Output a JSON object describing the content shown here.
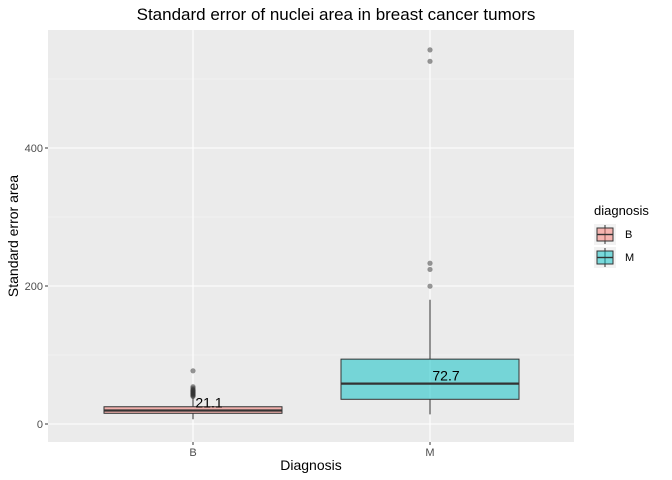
{
  "chart_data": {
    "type": "box",
    "title": "Standard error of nuclei area in breast cancer tumors",
    "xlabel": "Diagnosis",
    "ylabel": "Standard error area",
    "categories": [
      "B",
      "M"
    ],
    "yticks": [
      0,
      200,
      400
    ],
    "ylim": [
      -20,
      560
    ],
    "grid": true,
    "legend": {
      "title": "diagnosis",
      "position": "right",
      "entries": [
        {
          "label": "B",
          "color": "#F8766D"
        },
        {
          "label": "M",
          "color": "#00BFC4"
        }
      ]
    },
    "boxes": [
      {
        "category": "B",
        "min": 6.8,
        "q1": 15.5,
        "median": 19.6,
        "q3": 25.0,
        "max": 38.0,
        "outliers": [
          40,
          41,
          42,
          43,
          44,
          45,
          46,
          47,
          48,
          49,
          50,
          52,
          54,
          77.1
        ],
        "mean_label": "21.1",
        "fill": "#F8766D"
      },
      {
        "category": "M",
        "min": 13.99,
        "q1": 35.8,
        "median": 58.5,
        "q3": 94.0,
        "max": 180.0,
        "outliers": [
          199.7,
          224,
          233,
          525.6,
          542.2
        ],
        "mean_label": "72.7",
        "fill": "#00BFC4"
      }
    ]
  }
}
